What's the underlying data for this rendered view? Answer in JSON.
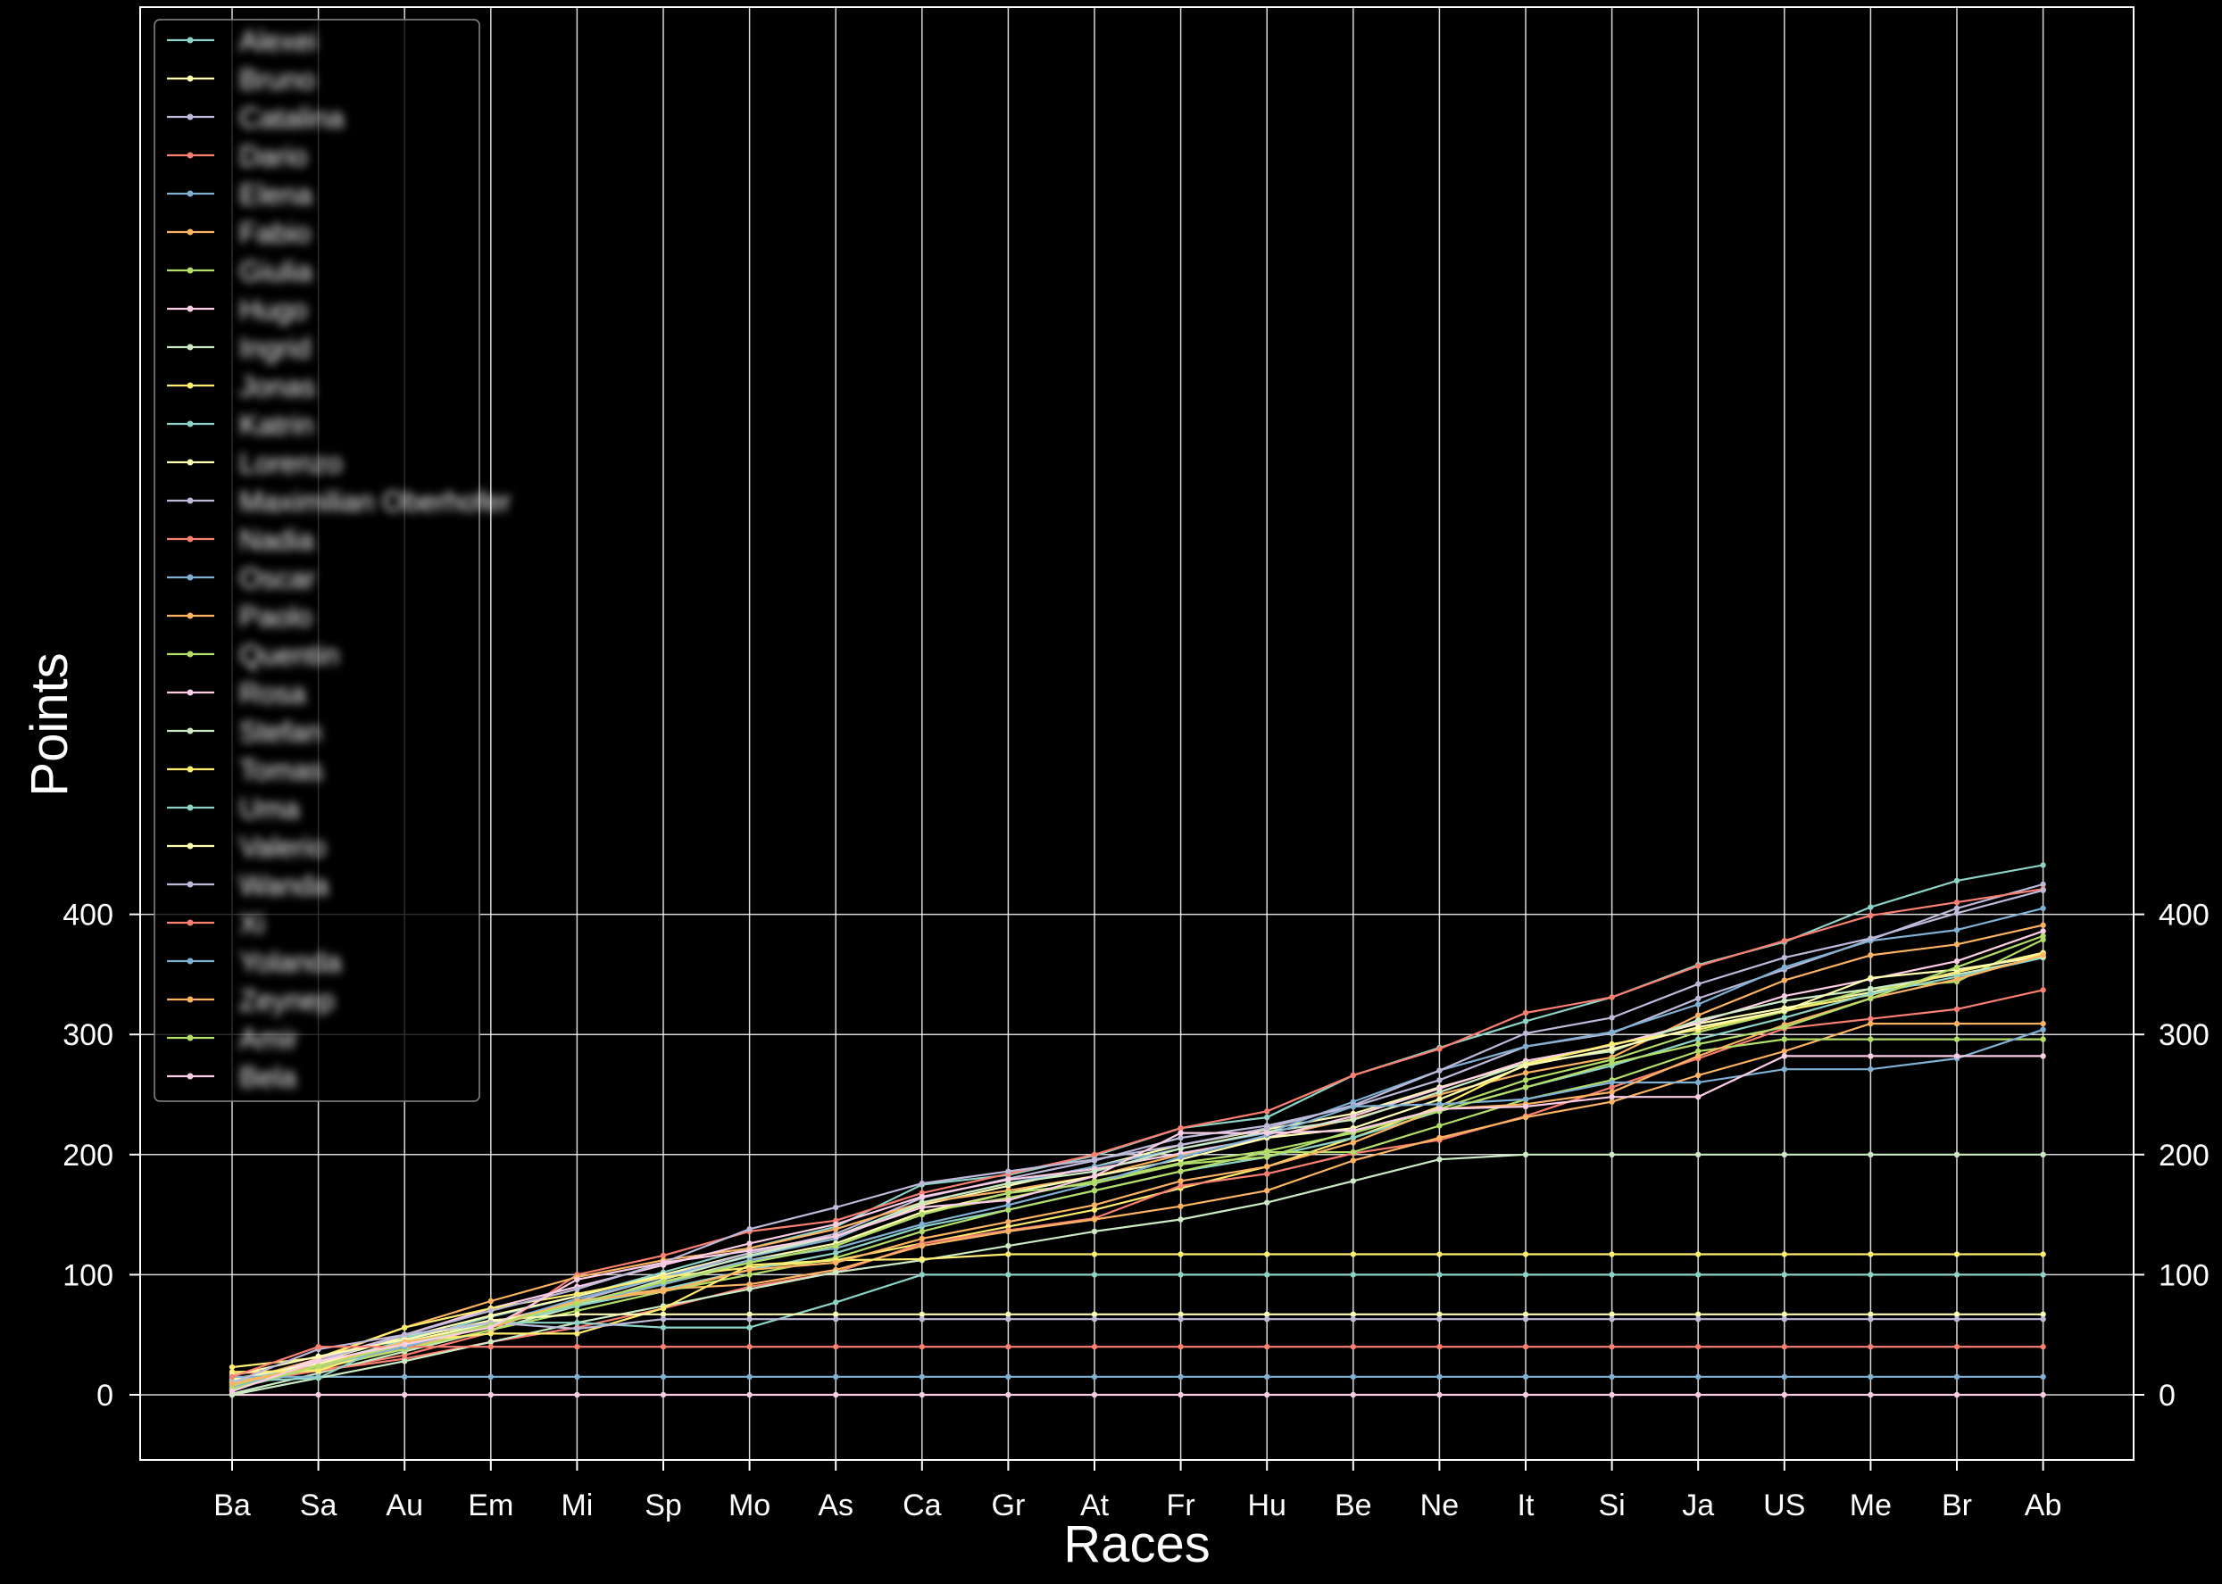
{
  "chart_data": {
    "type": "line",
    "title": "",
    "xlabel": "Races",
    "ylabel": "Points",
    "ylim": [
      -21,
      462
    ],
    "y_ticks": [
      0,
      100,
      200,
      300,
      400
    ],
    "grid": true,
    "legend_position": "top-left",
    "background": "#000000",
    "categories": [
      "Ba",
      "Sa",
      "Au",
      "Em",
      "Mi",
      "Sp",
      "Mo",
      "As",
      "Ca",
      "Gr",
      "At",
      "Fr",
      "Hu",
      "Be",
      "Ne",
      "It",
      "Si",
      "Ja",
      "US",
      "Me",
      "Br",
      "Ab"
    ],
    "series": [
      {
        "name": "Alexei",
        "color": "#8dd3c7",
        "values": [
          8,
          26,
          45,
          65,
          82,
          102,
          122,
          140,
          175,
          183,
          199,
          222,
          231,
          266,
          289,
          311,
          331,
          358,
          377,
          406,
          428,
          441
        ]
      },
      {
        "name": "Bruno",
        "color": "#ffffb3",
        "values": [
          12,
          28,
          48,
          66,
          82,
          100,
          118,
          132,
          158,
          174,
          190,
          208,
          221,
          234,
          256,
          276,
          291,
          309,
          322,
          335,
          352,
          368
        ]
      },
      {
        "name": "Catalina",
        "color": "#bebada",
        "values": [
          5,
          22,
          42,
          60,
          78,
          98,
          118,
          134,
          164,
          180,
          195,
          214,
          224,
          240,
          262,
          290,
          301,
          330,
          354,
          379,
          405,
          425
        ]
      },
      {
        "name": "Dario",
        "color": "#fb8072",
        "values": [
          18,
          20,
          33,
          52,
          100,
          116,
          136,
          145,
          168,
          184,
          200,
          222,
          236,
          266,
          288,
          318,
          331,
          357,
          378,
          399,
          410,
          421
        ]
      },
      {
        "name": "Elena",
        "color": "#80b1d3",
        "values": [
          6,
          22,
          40,
          58,
          80,
          98,
          115,
          130,
          160,
          176,
          190,
          205,
          218,
          244,
          270,
          290,
          302,
          325,
          356,
          378,
          387,
          405
        ]
      },
      {
        "name": "Fabio",
        "color": "#fdb462",
        "values": [
          10,
          30,
          56,
          78,
          98,
          112,
          122,
          138,
          160,
          170,
          182,
          200,
          214,
          230,
          250,
          268,
          281,
          316,
          345,
          366,
          375,
          391
        ]
      },
      {
        "name": "Giulia",
        "color": "#b3de69",
        "values": [
          4,
          25,
          44,
          60,
          74,
          92,
          110,
          124,
          152,
          164,
          178,
          193,
          203,
          218,
          238,
          262,
          279,
          302,
          319,
          338,
          344,
          379
        ]
      },
      {
        "name": "Hugo",
        "color": "#fccde5",
        "values": [
          7,
          30,
          50,
          72,
          90,
          108,
          126,
          142,
          165,
          179,
          188,
          201,
          214,
          232,
          255,
          278,
          291,
          310,
          332,
          346,
          361,
          386
        ]
      },
      {
        "name": "Ingrid",
        "color": "#ccebc5",
        "values": [
          1,
          18,
          36,
          54,
          74,
          96,
          116,
          132,
          160,
          176,
          186,
          205,
          219,
          229,
          252,
          276,
          286,
          312,
          328,
          338,
          350,
          364
        ]
      },
      {
        "name": "Jonas",
        "color": "#ffed6f",
        "values": [
          23,
          31,
          56,
          72,
          84,
          98,
          106,
          112,
          126,
          140,
          154,
          172,
          190,
          214,
          240,
          275,
          292,
          304,
          320,
          333,
          352,
          367
        ]
      },
      {
        "name": "Katrin",
        "color": "#8dd3c7",
        "values": [
          11,
          26,
          42,
          58,
          74,
          88,
          104,
          118,
          140,
          154,
          170,
          186,
          198,
          214,
          236,
          256,
          274,
          296,
          314,
          334,
          348,
          364
        ]
      },
      {
        "name": "Lorenzo",
        "color": "#ffffb3",
        "values": [
          13,
          26,
          44,
          60,
          76,
          94,
          112,
          126,
          152,
          168,
          182,
          196,
          214,
          222,
          246,
          274,
          288,
          306,
          320,
          347,
          354,
          365
        ]
      },
      {
        "name": "Maximilian Oberhofer",
        "color": "#bebada",
        "values": [
          3,
          28,
          50,
          70,
          88,
          110,
          138,
          156,
          176,
          186,
          196,
          208,
          222,
          241,
          270,
          301,
          314,
          342,
          364,
          380,
          401,
          420
        ]
      },
      {
        "name": "Nadia",
        "color": "#fb8072",
        "values": [
          9,
          20,
          30,
          44,
          56,
          72,
          90,
          102,
          126,
          137,
          147,
          174,
          184,
          201,
          212,
          232,
          256,
          280,
          305,
          313,
          321,
          337
        ]
      },
      {
        "name": "Oscar",
        "color": "#80b1d3",
        "values": [
          15,
          15,
          15,
          15,
          15,
          15,
          15,
          15,
          15,
          15,
          15,
          15,
          15,
          15,
          15,
          15,
          15,
          15,
          15,
          15,
          15,
          15
        ]
      },
      {
        "name": "Paolo",
        "color": "#fdb462",
        "values": [
          10,
          24,
          38,
          58,
          78,
          88,
          92,
          104,
          124,
          136,
          146,
          157,
          170,
          195,
          214,
          231,
          244,
          266,
          286,
          309,
          309,
          309
        ]
      },
      {
        "name": "Quentin",
        "color": "#b3de69",
        "values": [
          8,
          22,
          38,
          54,
          70,
          86,
          100,
          114,
          136,
          154,
          170,
          186,
          202,
          202,
          224,
          246,
          262,
          286,
          296,
          296,
          296,
          296
        ]
      },
      {
        "name": "Rosa",
        "color": "#fccde5",
        "values": [
          0,
          0,
          0,
          0,
          0,
          0,
          0,
          0,
          0,
          0,
          0,
          0,
          0,
          0,
          0,
          0,
          0,
          0,
          0,
          0,
          0,
          0
        ]
      },
      {
        "name": "Stefan",
        "color": "#ccebc5",
        "values": [
          0,
          14,
          28,
          44,
          60,
          74,
          88,
          102,
          112,
          124,
          136,
          146,
          160,
          178,
          196,
          200,
          200,
          200,
          200,
          200,
          200,
          200
        ]
      },
      {
        "name": "Tomas",
        "color": "#ffed6f",
        "values": [
          19,
          20,
          44,
          51,
          51,
          72,
          108,
          112,
          113,
          117,
          117,
          117,
          117,
          117,
          117,
          117,
          117,
          117,
          117,
          117,
          117,
          117
        ]
      },
      {
        "name": "Uma",
        "color": "#8dd3c7",
        "values": [
          11,
          14,
          48,
          60,
          60,
          56,
          56,
          77,
          100,
          100,
          100,
          100,
          100,
          100,
          100,
          100,
          100,
          100,
          100,
          100,
          100,
          100
        ]
      },
      {
        "name": "Valerio",
        "color": "#ffffb3",
        "values": [
          16,
          32,
          46,
          62,
          67,
          67,
          67,
          67,
          67,
          67,
          67,
          67,
          67,
          67,
          67,
          67,
          67,
          67,
          67,
          67,
          67,
          67
        ]
      },
      {
        "name": "Wanda",
        "color": "#bebada",
        "values": [
          10,
          38,
          50,
          60,
          55,
          63,
          63,
          63,
          63,
          63,
          63,
          63,
          63,
          63,
          63,
          63,
          63,
          63,
          63,
          63,
          63,
          63
        ]
      },
      {
        "name": "Xi",
        "color": "#fb8072",
        "values": [
          15,
          40,
          40,
          40,
          40,
          40,
          40,
          40,
          40,
          40,
          40,
          40,
          40,
          40,
          40,
          40,
          40,
          40,
          40,
          40,
          40,
          40
        ]
      },
      {
        "name": "Yolanda",
        "color": "#80b1d3",
        "values": [
          6,
          24,
          40,
          58,
          76,
          92,
          112,
          122,
          142,
          158,
          176,
          198,
          216,
          240,
          242,
          246,
          260,
          260,
          271,
          271,
          280,
          304
        ]
      },
      {
        "name": "Zeynep",
        "color": "#fdb462",
        "values": [
          9,
          24,
          44,
          56,
          78,
          86,
          104,
          110,
          130,
          144,
          158,
          178,
          190,
          210,
          238,
          242,
          252,
          282,
          308,
          330,
          346,
          366
        ]
      },
      {
        "name": "Amir",
        "color": "#b3de69",
        "values": [
          5,
          24,
          42,
          58,
          76,
          94,
          110,
          124,
          150,
          168,
          176,
          192,
          198,
          220,
          236,
          256,
          276,
          292,
          306,
          330,
          356,
          382
        ]
      },
      {
        "name": "Bela",
        "color": "#fccde5",
        "values": [
          3,
          28,
          42,
          56,
          96,
          110,
          120,
          132,
          156,
          162,
          182,
          218,
          218,
          220,
          238,
          240,
          248,
          248,
          282,
          282,
          282,
          282
        ]
      }
    ]
  }
}
